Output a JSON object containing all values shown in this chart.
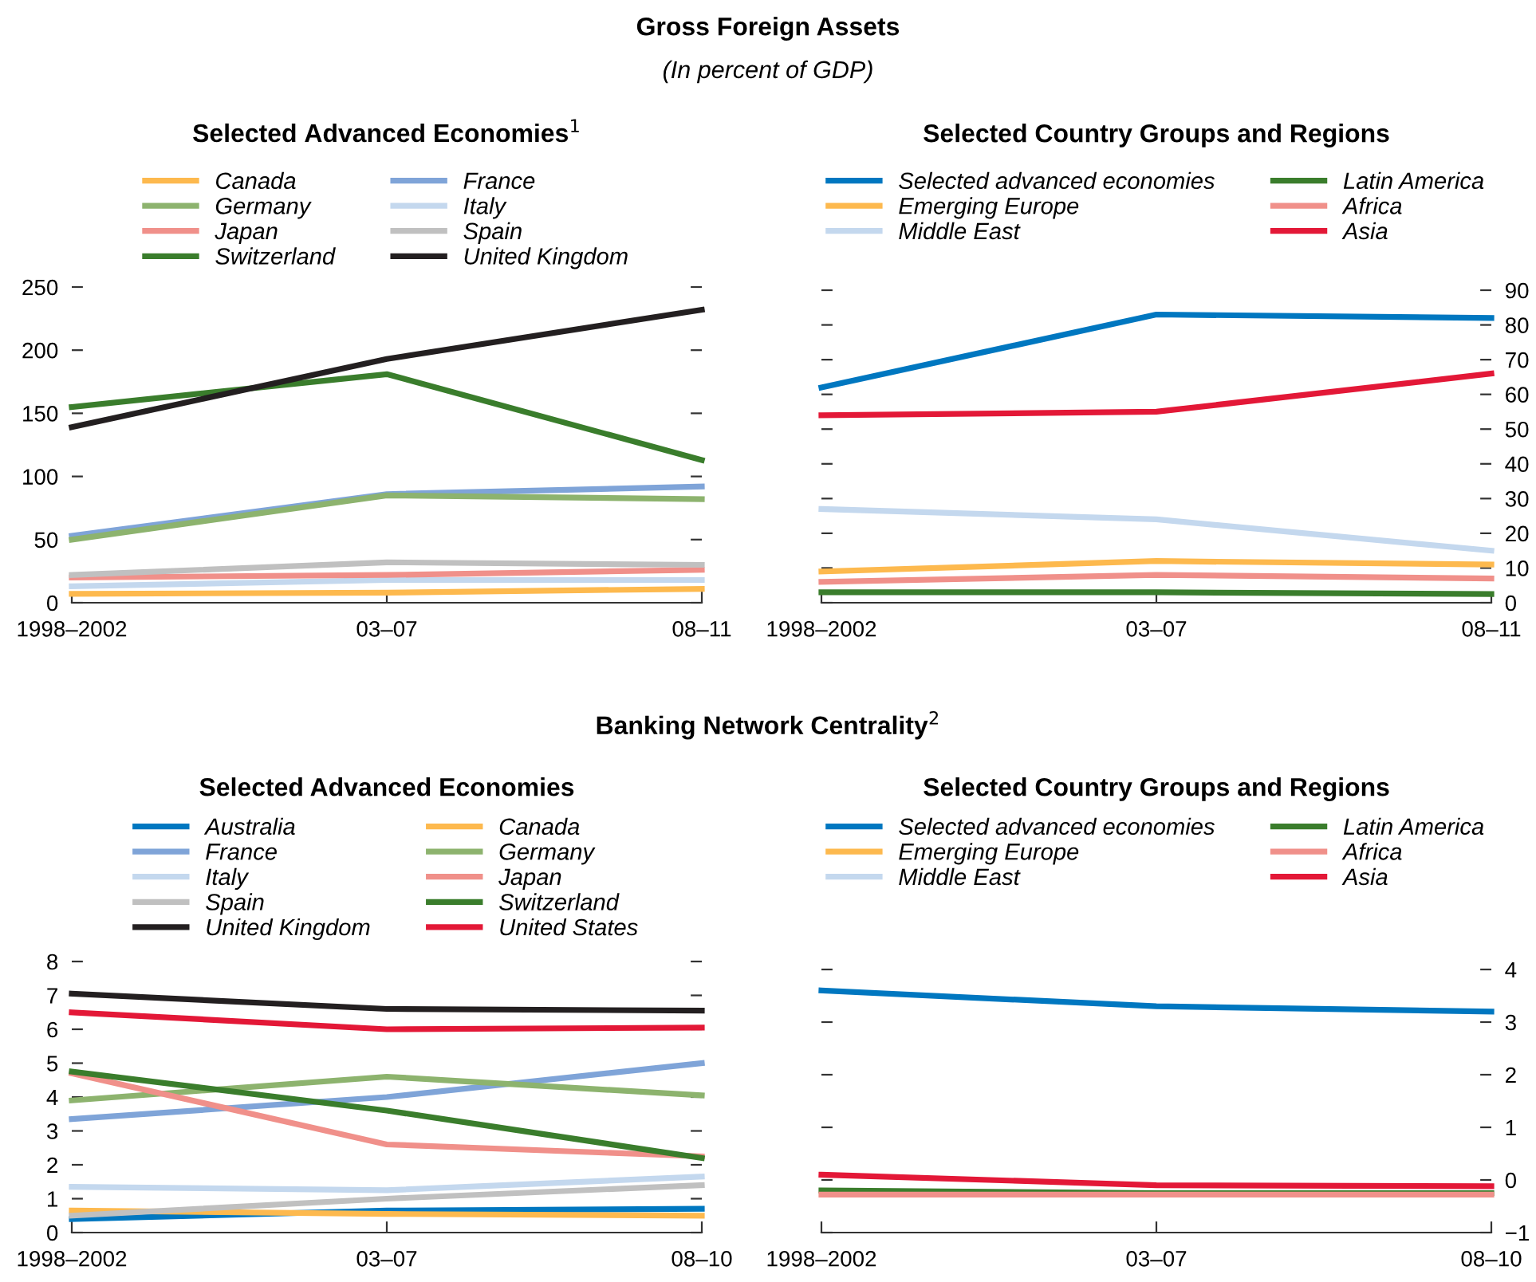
{
  "chart_data": [
    {
      "type": "line",
      "title": "Selected Advanced Economies$^{1}$",
      "annotations": [
        "Gross Foreign Assets",
        "(In percent of GDP)"
      ],
      "categories": [
        "1998–2002",
        "03–07",
        "08–11"
      ],
      "ylim": [
        0,
        250
      ],
      "yticks": [
        0,
        50,
        100,
        150,
        200,
        250
      ],
      "legend": "top",
      "grid": false,
      "series": [
        {
          "name": "Canada",
          "color": "#fdb94e",
          "values": [
            7,
            8,
            11
          ]
        },
        {
          "name": "France",
          "color": "#7fa4d8",
          "values": [
            53,
            86,
            92
          ]
        },
        {
          "name": "Germany",
          "color": "#8db36e",
          "values": [
            50,
            85,
            82
          ]
        },
        {
          "name": "Italy",
          "color": "#c4d8ee",
          "values": [
            13,
            18,
            18
          ]
        },
        {
          "name": "Japan",
          "color": "#f0908a",
          "values": [
            20,
            22,
            26
          ]
        },
        {
          "name": "Spain",
          "color": "#c0c0c0",
          "values": [
            22,
            32,
            30
          ]
        },
        {
          "name": "Switzerland",
          "color": "#3a7d2c",
          "values": [
            155,
            181,
            113
          ]
        },
        {
          "name": "United Kingdom",
          "color": "#231f20",
          "values": [
            139,
            193,
            232
          ]
        }
      ]
    },
    {
      "type": "line",
      "title": "Selected Country Groups and Regions",
      "categories": [
        "1998–2002",
        "03–07",
        "08–11"
      ],
      "y2lim": [
        0,
        90
      ],
      "y2ticks": [
        0,
        10,
        20,
        30,
        40,
        50,
        60,
        70,
        80,
        90
      ],
      "legend": "top",
      "grid": false,
      "series": [
        {
          "name": "Selected advanced economies",
          "color": "#0077c0",
          "axis": "y2",
          "values": [
            62,
            83,
            82
          ]
        },
        {
          "name": "Latin America",
          "color": "#3a7d2c",
          "axis": "y2",
          "values": [
            3,
            3,
            2.5
          ]
        },
        {
          "name": "Emerging Europe",
          "color": "#fdb94e",
          "axis": "y2",
          "values": [
            9,
            12,
            11
          ]
        },
        {
          "name": "Africa",
          "color": "#f0908a",
          "axis": "y2",
          "values": [
            6,
            8,
            7
          ]
        },
        {
          "name": "Middle East",
          "color": "#c4d8ee",
          "axis": "y2",
          "values": [
            27,
            24,
            15
          ]
        },
        {
          "name": "Asia",
          "color": "#e31837",
          "axis": "y2",
          "values": [
            54,
            55,
            66
          ]
        }
      ]
    },
    {
      "type": "line",
      "title": "Selected Advanced Economies",
      "annotations": [
        "Banking Network Centrality$^{2}$"
      ],
      "categories": [
        "1998–2002",
        "03–07",
        "08–10"
      ],
      "ylim": [
        0,
        8
      ],
      "yticks": [
        0,
        1,
        2,
        3,
        4,
        5,
        6,
        7,
        8
      ],
      "legend": "top",
      "grid": false,
      "series": [
        {
          "name": "Australia",
          "color": "#0077c0",
          "values": [
            0.4,
            0.65,
            0.7
          ]
        },
        {
          "name": "Canada",
          "color": "#fdb94e",
          "values": [
            0.65,
            0.55,
            0.5
          ]
        },
        {
          "name": "France",
          "color": "#7fa4d8",
          "values": [
            3.35,
            4.0,
            5.0
          ]
        },
        {
          "name": "Germany",
          "color": "#8db36e",
          "values": [
            3.9,
            4.6,
            4.05
          ]
        },
        {
          "name": "Italy",
          "color": "#c4d8ee",
          "values": [
            1.35,
            1.25,
            1.65
          ]
        },
        {
          "name": "Japan",
          "color": "#f0908a",
          "values": [
            4.7,
            2.6,
            2.25
          ]
        },
        {
          "name": "Spain",
          "color": "#c0c0c0",
          "values": [
            0.5,
            1.0,
            1.4
          ]
        },
        {
          "name": "Switzerland",
          "color": "#3a7d2c",
          "values": [
            4.75,
            3.6,
            2.2
          ]
        },
        {
          "name": "United Kingdom",
          "color": "#231f20",
          "values": [
            7.05,
            6.6,
            6.55
          ]
        },
        {
          "name": "United States",
          "color": "#e31837",
          "values": [
            6.5,
            6.0,
            6.05
          ]
        }
      ]
    },
    {
      "type": "line",
      "title": "Selected Country Groups and Regions",
      "categories": [
        "1998–2002",
        "03–07",
        "08–10"
      ],
      "y2lim": [
        -1,
        4
      ],
      "y2ticks": [
        -1,
        0,
        1,
        2,
        3,
        4
      ],
      "legend": "top",
      "grid": false,
      "series": [
        {
          "name": "Selected advanced economies",
          "color": "#0077c0",
          "axis": "y2",
          "values": [
            3.6,
            3.3,
            3.2
          ]
        },
        {
          "name": "Latin America",
          "color": "#3a7d2c",
          "axis": "y2",
          "values": [
            -0.2,
            -0.25,
            -0.25
          ]
        },
        {
          "name": "Emerging Europe",
          "color": "#fdb94e",
          "axis": "y2",
          "values": [
            null,
            null,
            null
          ]
        },
        {
          "name": "Africa",
          "color": "#f0908a",
          "axis": "y2",
          "values": [
            -0.28,
            -0.28,
            -0.28
          ]
        },
        {
          "name": "Middle East",
          "color": "#c4d8ee",
          "axis": "y2",
          "values": [
            null,
            null,
            null
          ]
        },
        {
          "name": "Asia",
          "color": "#e31837",
          "axis": "y2",
          "values": [
            0.1,
            -0.1,
            -0.12
          ]
        }
      ]
    }
  ]
}
